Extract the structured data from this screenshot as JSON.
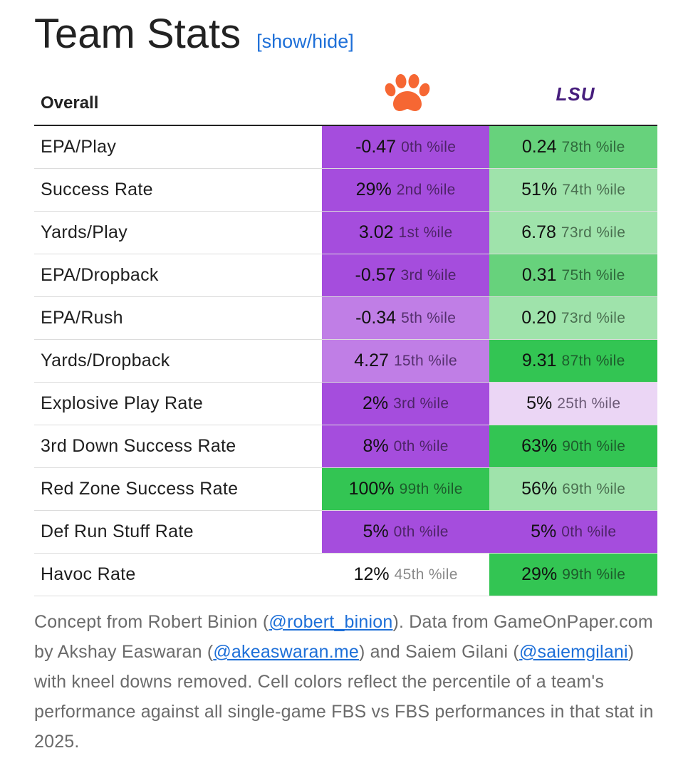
{
  "header": {
    "title": "Team Stats",
    "toggle_label": "[show/hide]"
  },
  "table": {
    "section_label": "Overall",
    "teams": [
      {
        "logo": "clemson-paw-logo",
        "color": "#f66733"
      },
      {
        "logo": "lsu-logo",
        "logo_text": "LSU",
        "color": "#461d7c"
      }
    ],
    "rows": [
      {
        "label": "EPA/Play",
        "a": {
          "value": "-0.47",
          "pct": "0th %ile",
          "tone": "c-p-dark"
        },
        "b": {
          "value": "0.24",
          "pct": "78th %ile",
          "tone": "c-g-mid"
        }
      },
      {
        "label": "Success Rate",
        "a": {
          "value": "29%",
          "pct": "2nd %ile",
          "tone": "c-p-dark"
        },
        "b": {
          "value": "51%",
          "pct": "74th %ile",
          "tone": "c-g-light"
        }
      },
      {
        "label": "Yards/Play",
        "a": {
          "value": "3.02",
          "pct": "1st %ile",
          "tone": "c-p-dark"
        },
        "b": {
          "value": "6.78",
          "pct": "73rd %ile",
          "tone": "c-g-light"
        }
      },
      {
        "label": "EPA/Dropback",
        "a": {
          "value": "-0.57",
          "pct": "3rd %ile",
          "tone": "c-p-dark"
        },
        "b": {
          "value": "0.31",
          "pct": "75th %ile",
          "tone": "c-g-mid"
        }
      },
      {
        "label": "EPA/Rush",
        "a": {
          "value": "-0.34",
          "pct": "5th %ile",
          "tone": "c-p-mid"
        },
        "b": {
          "value": "0.20",
          "pct": "73rd %ile",
          "tone": "c-g-light"
        }
      },
      {
        "label": "Yards/Dropback",
        "a": {
          "value": "4.27",
          "pct": "15th %ile",
          "tone": "c-p-mid"
        },
        "b": {
          "value": "9.31",
          "pct": "87th %ile",
          "tone": "c-g-dark"
        }
      },
      {
        "label": "Explosive Play Rate",
        "a": {
          "value": "2%",
          "pct": "3rd %ile",
          "tone": "c-p-dark"
        },
        "b": {
          "value": "5%",
          "pct": "25th %ile",
          "tone": "c-p-light"
        }
      },
      {
        "label": "3rd Down Success Rate",
        "a": {
          "value": "8%",
          "pct": "0th %ile",
          "tone": "c-p-dark"
        },
        "b": {
          "value": "63%",
          "pct": "90th %ile",
          "tone": "c-g-dark"
        }
      },
      {
        "label": "Red Zone Success Rate",
        "a": {
          "value": "100%",
          "pct": "99th %ile",
          "tone": "c-g-dark"
        },
        "b": {
          "value": "56%",
          "pct": "69th %ile",
          "tone": "c-g-light"
        }
      },
      {
        "label": "Def Run Stuff Rate",
        "a": {
          "value": "5%",
          "pct": "0th %ile",
          "tone": "c-p-dark"
        },
        "b": {
          "value": "5%",
          "pct": "0th %ile",
          "tone": "c-p-dark"
        }
      },
      {
        "label": "Havoc Rate",
        "a": {
          "value": "12%",
          "pct": "45th %ile",
          "tone": "c-neutral"
        },
        "b": {
          "value": "29%",
          "pct": "99th %ile",
          "tone": "c-g-dark"
        }
      }
    ]
  },
  "footer": {
    "t1": "Concept from Robert Binion (",
    "link1": "@robert_binion",
    "t2": "). Data from GameOnPaper.com by Akshay Easwaran (",
    "link2": "@akeaswaran.me",
    "t3": ") and Saiem Gilani (",
    "link3": "@saiemgilani",
    "t4": ") with kneel downs removed. Cell colors reflect the percentile of a team's performance against all single-game FBS vs FBS performances in that stat in 2025."
  }
}
